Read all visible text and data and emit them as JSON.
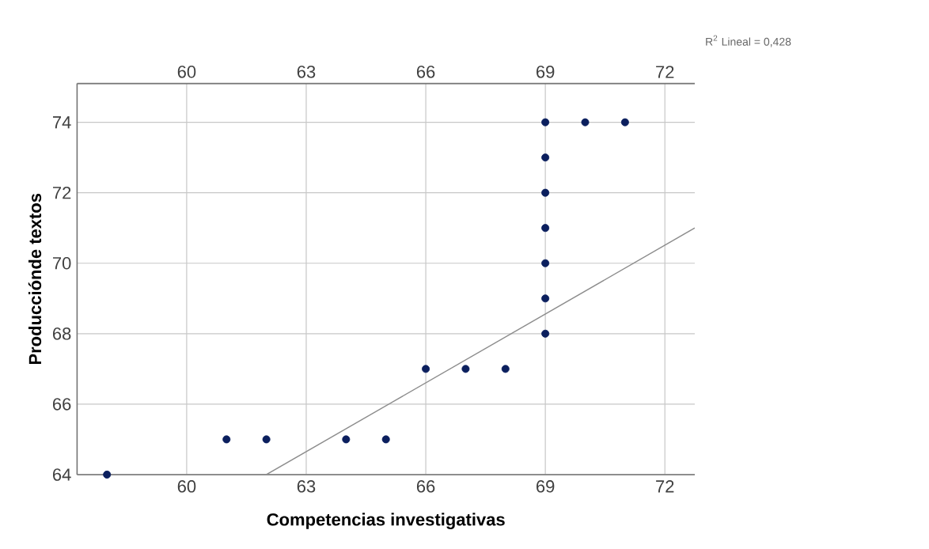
{
  "chart_data": {
    "type": "scatter",
    "xlabel": "Competencias investigativas",
    "ylabel": "Producciónde textos",
    "annotations": [
      "R$^{2}$ Lineal = 0,428"
    ],
    "xlim": [
      57.25,
      72.75
    ],
    "xticks": [
      60,
      63,
      66,
      69,
      72
    ],
    "x2lim": [
      57.25,
      72.75
    ],
    "x2ticks": [
      60,
      63,
      66,
      69,
      72
    ],
    "ylim": [
      64,
      75.1
    ],
    "yticks": [
      64,
      66,
      68,
      70,
      72,
      74
    ],
    "grid": true,
    "series": [
      {
        "marker": "circle",
        "color": "#0b1f5e",
        "x": [
          58,
          61,
          62,
          64,
          65,
          66,
          67,
          68,
          69,
          69,
          69,
          69,
          69,
          69,
          69,
          70,
          71
        ],
        "values": [
          64,
          65,
          65,
          65,
          65,
          67,
          67,
          67,
          68,
          69,
          70,
          71,
          72,
          73,
          74,
          74,
          74
        ]
      },
      {
        "type": "line",
        "marker": "none",
        "color": "#8c8c8c",
        "x": [
          62,
          72.75
        ],
        "values": [
          64,
          71
        ]
      }
    ]
  }
}
